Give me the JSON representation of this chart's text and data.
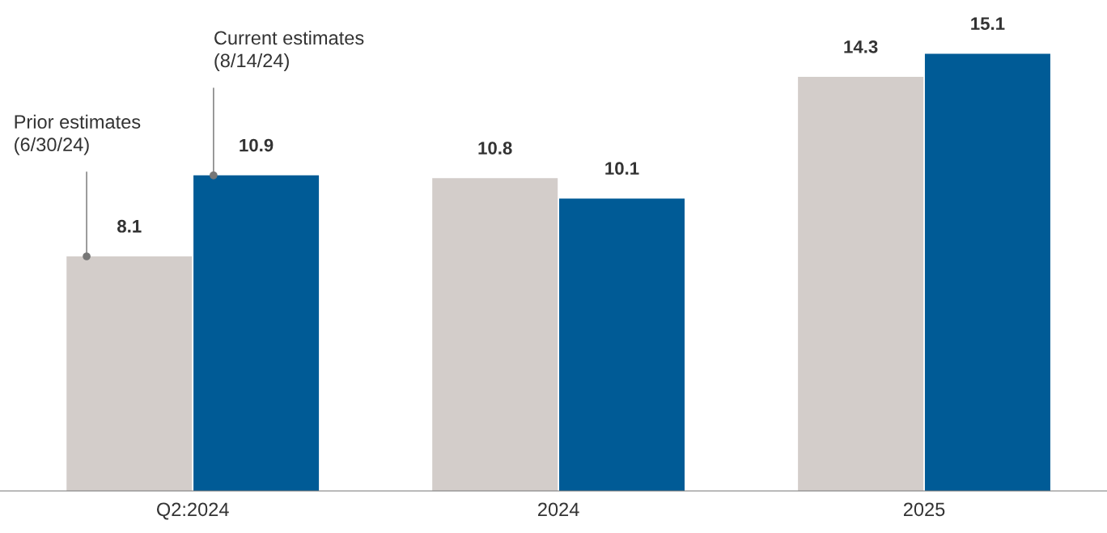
{
  "chart_data": {
    "type": "bar",
    "categories": [
      "Q2:2024",
      "2024",
      "2025"
    ],
    "series": [
      {
        "name": "Prior estimates\n(6/30/24)",
        "color": "#d3cdca",
        "values": [
          8.1,
          10.8,
          14.3
        ]
      },
      {
        "name": "Current estimates\n(8/14/24)",
        "color": "#005b96",
        "values": [
          10.9,
          10.1,
          15.1
        ]
      }
    ],
    "data_labels": true,
    "grid": false,
    "legend": false
  }
}
